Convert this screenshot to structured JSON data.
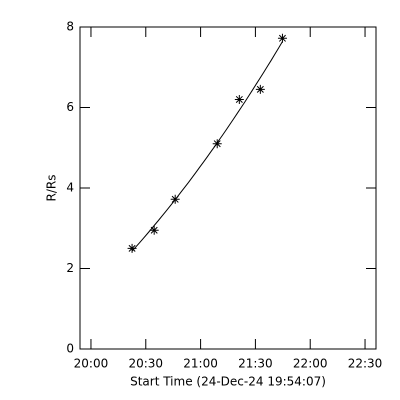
{
  "chart_data": {
    "type": "scatter",
    "xlabel": "Start Time (24-Dec-24 19:54:07)",
    "ylabel": "R/Rs",
    "x": [
      1222.5,
      1234.6,
      1246.1,
      1269.1,
      1281.2,
      1292.7,
      1304.8
    ],
    "values": [
      2.5,
      2.95,
      3.72,
      5.1,
      6.2,
      6.45,
      7.72
    ],
    "color": "#000000",
    "fit": true,
    "xlim": [
      1194,
      1356
    ],
    "xticks": [
      {
        "value": 1200,
        "label": "20:00"
      },
      {
        "value": 1230,
        "label": "20:30"
      },
      {
        "value": 1260,
        "label": "21:00"
      },
      {
        "value": 1290,
        "label": "21:30"
      },
      {
        "value": 1320,
        "label": "22:00"
      },
      {
        "value": 1350,
        "label": "22:30"
      }
    ],
    "ylim": [
      0,
      8
    ],
    "yticks": [
      0,
      2,
      4,
      6,
      8
    ]
  }
}
